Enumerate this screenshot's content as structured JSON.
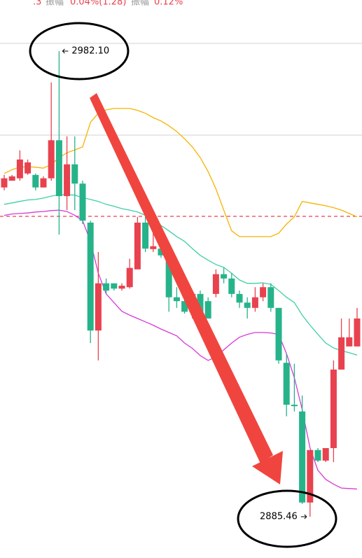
{
  "chart_data": {
    "type": "candlestick",
    "header": [
      {
        "text": ".3",
        "color": "#e8424f"
      },
      {
        "text": "振幅",
        "color": "#999999"
      },
      {
        "text": "0.04%(1.28)",
        "color": "#e8424f"
      },
      {
        "text": "振幅",
        "color": "#999999"
      },
      {
        "text": "0.12%",
        "color": "#e8424f"
      }
    ],
    "up_color": "#e8424f",
    "down_color": "#26b38a",
    "candles": [
      [
        2953.8,
        2956.4,
        2953.2,
        2955.7
      ],
      [
        2955.2,
        2956.4,
        2955.2,
        2956.1
      ],
      [
        2955.7,
        2961.5,
        2955.2,
        2959.6
      ],
      [
        2956.7,
        2959.6,
        2956.4,
        2959.0
      ],
      [
        2956.4,
        2956.7,
        2953.2,
        2953.8
      ],
      [
        2953.8,
        2956.1,
        2953.8,
        2955.7
      ],
      [
        2955.7,
        2975.6,
        2955.2,
        2963.6
      ],
      [
        2963.6,
        2982.1,
        2944.0,
        2952.0
      ],
      [
        2952.0,
        2964.4,
        2949.1,
        2958.6
      ],
      [
        2958.6,
        2964.4,
        2949.1,
        2954.6
      ],
      [
        2954.6,
        2955.2,
        2946.2,
        2946.9
      ],
      [
        2946.5,
        2946.9,
        2921.5,
        2924.1
      ],
      [
        2924.1,
        2940.4,
        2917.9,
        2933.9
      ],
      [
        2933.9,
        2934.9,
        2931.7,
        2932.4
      ],
      [
        2933.9,
        2933.9,
        2932.4,
        2932.8
      ],
      [
        2932.8,
        2933.9,
        2932.4,
        2933.4
      ],
      [
        2933.1,
        2939.0,
        2932.8,
        2937.1
      ],
      [
        2936.8,
        2947.7,
        2936.8,
        2946.5
      ],
      [
        2946.5,
        2947.7,
        2940.4,
        2941.1
      ],
      [
        2941.0,
        2946.5,
        2940.4,
        2941.6
      ],
      [
        2941.1,
        2941.6,
        2939.2,
        2939.7
      ],
      [
        2939.2,
        2939.7,
        2928.0,
        2931.0
      ],
      [
        2931.0,
        2933.1,
        2928.8,
        2930.2
      ],
      [
        2930.2,
        2931.0,
        2927.6,
        2928.0
      ],
      [
        2928.0,
        2932.4,
        2926.6,
        2931.7
      ],
      [
        2931.7,
        2932.4,
        2927.6,
        2928.0
      ],
      [
        2930.2,
        2931.0,
        2926.6,
        2926.6
      ],
      [
        2931.7,
        2936.8,
        2931.0,
        2935.8
      ],
      [
        2935.8,
        2937.1,
        2933.9,
        2934.9
      ],
      [
        2934.9,
        2936.0,
        2931.0,
        2931.7
      ],
      [
        2931.7,
        2932.4,
        2928.8,
        2929.9
      ],
      [
        2929.9,
        2931.0,
        2926.6,
        2928.8
      ],
      [
        2928.8,
        2933.1,
        2928.0,
        2931.0
      ],
      [
        2931.0,
        2933.9,
        2930.2,
        2933.1
      ],
      [
        2933.1,
        2933.9,
        2928.0,
        2928.8
      ],
      [
        2928.8,
        2928.8,
        2917.2,
        2917.9
      ],
      [
        2917.4,
        2919.3,
        2906.3,
        2908.7
      ],
      [
        2908.7,
        2917.2,
        2907.3,
        2908.4
      ],
      [
        2907.3,
        2910.6,
        2888.1,
        2888.4
      ],
      [
        2888.4,
        2899.3,
        2885.46,
        2899.3
      ],
      [
        2899.3,
        2899.7,
        2896.8,
        2897.1
      ],
      [
        2897.1,
        2899.7,
        2896.8,
        2899.7
      ],
      [
        2899.7,
        2917.9,
        2896.8,
        2916.0
      ],
      [
        2916.0,
        2926.6,
        2916.0,
        2922.7
      ],
      [
        2920.8,
        2926.6,
        2920.8,
        2922.7
      ],
      [
        2920.8,
        2928.8,
        2920.8,
        2926.6
      ]
    ],
    "lines": [
      {
        "color": "#f5b400",
        "values": [
          2956.7,
          2957.5,
          2958.0,
          2958.1,
          2958.0,
          2957.8,
          2958.6,
          2960.0,
          2961.0,
          2961.6,
          2962.2,
          2967.3,
          2969.2,
          2969.9,
          2970.2,
          2970.2,
          2970.2,
          2969.8,
          2969.2,
          2968.3,
          2967.6,
          2966.6,
          2965.4,
          2963.9,
          2962.2,
          2960.0,
          2957.1,
          2953.5,
          2949.1,
          2944.8,
          2943.6,
          2943.6,
          2943.6,
          2943.6,
          2943.6,
          2944.3,
          2946.2,
          2947.7,
          2950.9,
          2950.6,
          2950.3,
          2950.0,
          2949.6,
          2949.1,
          2948.4,
          2947.7
        ]
      },
      {
        "color": "#3fcfa6",
        "values": [
          2950.3,
          2950.6,
          2950.9,
          2951.2,
          2951.3,
          2951.6,
          2952.0,
          2952.3,
          2952.3,
          2952.2,
          2951.7,
          2951.3,
          2950.9,
          2950.3,
          2949.9,
          2949.4,
          2949.1,
          2948.7,
          2948.0,
          2946.9,
          2945.9,
          2944.8,
          2943.6,
          2942.6,
          2941.1,
          2939.7,
          2938.7,
          2937.8,
          2937.2,
          2936.0,
          2934.6,
          2933.9,
          2933.9,
          2934.0,
          2933.7,
          2932.4,
          2931.0,
          2929.9,
          2927.3,
          2925.2,
          2923.3,
          2921.5,
          2920.5,
          2919.9,
          2919.5,
          2919.0
        ]
      },
      {
        "color": "#d63ad6",
        "values": [
          2948.0,
          2948.3,
          2948.4,
          2948.5,
          2948.7,
          2948.8,
          2949.0,
          2949.1,
          2948.8,
          2948.0,
          2946.9,
          2942.6,
          2936.0,
          2931.7,
          2929.9,
          2928.1,
          2927.3,
          2926.6,
          2925.9,
          2925.2,
          2924.4,
          2923.7,
          2923.0,
          2921.5,
          2920.4,
          2918.9,
          2917.9,
          2918.6,
          2920.1,
          2921.5,
          2922.7,
          2923.3,
          2923.7,
          2923.7,
          2923.6,
          2923.3,
          2919.3,
          2914.3,
          2907.7,
          2899.7,
          2895.1,
          2893.2,
          2892.2,
          2891.4,
          2891.3,
          2891.2
        ]
      }
    ],
    "reference_line": {
      "value": 2947.8,
      "color": "#e8424f"
    },
    "annotations": [
      {
        "text": "2982.10",
        "candle": 7
      },
      {
        "text": "2885.46",
        "candle": 39
      }
    ]
  }
}
